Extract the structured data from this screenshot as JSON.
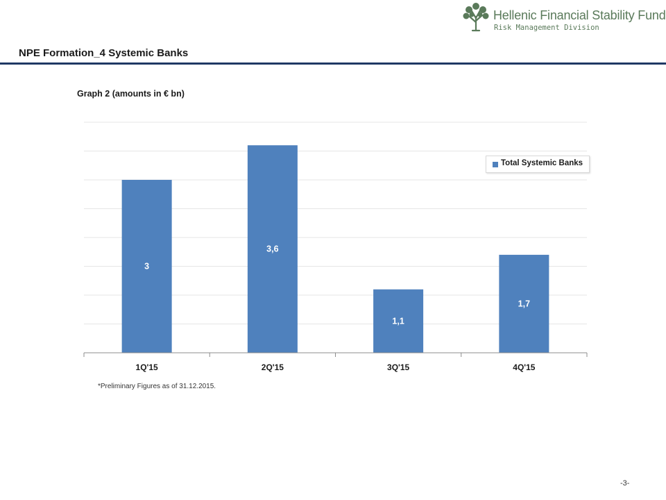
{
  "header": {
    "org_name": "Hellenic Financial Stability Fund",
    "division": "Risk Management Division",
    "logo_icon": "tree-icon"
  },
  "page_title": "NPE Formation_4 Systemic Banks",
  "graph_title": "Graph 2 (amounts in € bn)",
  "footnote": "*Preliminary Figures as of 31.12.2015.",
  "page_number": "-3-",
  "colors": {
    "bar": "#4f81bd",
    "title_rule": "#1f3864",
    "logo": "#5a7a5a"
  },
  "chart_data": {
    "type": "bar",
    "categories": [
      "1Q'15",
      "2Q'15",
      "3Q'15",
      "4Q'15"
    ],
    "series": [
      {
        "name": "Total Systemic Banks",
        "values": [
          3.0,
          3.6,
          1.1,
          1.7
        ],
        "labels": [
          "3",
          "3,6",
          "1,1",
          "1,7"
        ]
      }
    ],
    "ylim": [
      0,
      4
    ],
    "grid": true,
    "legend": "top-right"
  }
}
